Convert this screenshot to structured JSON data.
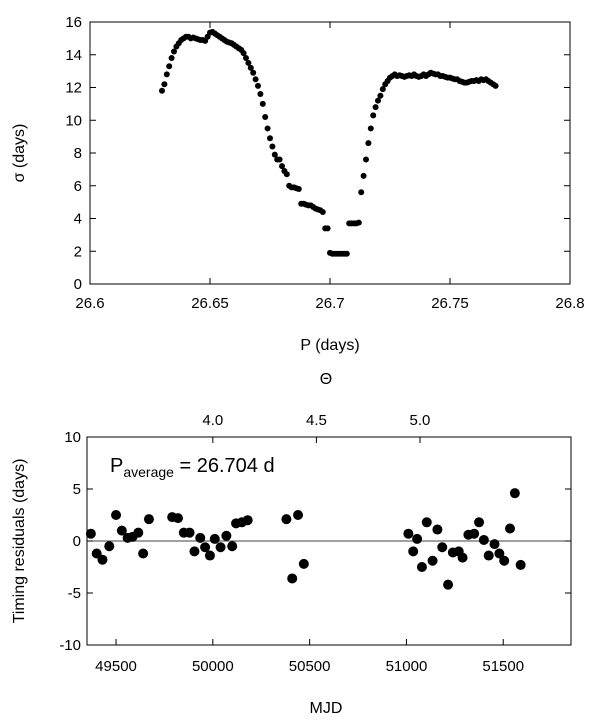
{
  "chart_data": [
    {
      "id": "top",
      "type": "scatter",
      "xlabel": "P (days)",
      "ylabel": "σ (days)",
      "xlim": [
        26.6,
        26.8
      ],
      "ylim": [
        0,
        16
      ],
      "xticks": [
        26.6,
        26.65,
        26.7,
        26.75,
        26.8
      ],
      "xtick_labels": [
        "26.6",
        "26.65",
        "26.7",
        "26.75",
        "26.8"
      ],
      "yticks": [
        0,
        2,
        4,
        6,
        8,
        10,
        12,
        14,
        16
      ],
      "ytick_labels": [
        "0",
        "2",
        "4",
        "6",
        "8",
        "10",
        "12",
        "14",
        "16"
      ],
      "points": [
        [
          26.63,
          11.8
        ],
        [
          26.631,
          12.2
        ],
        [
          26.632,
          12.8
        ],
        [
          26.633,
          13.3
        ],
        [
          26.634,
          13.8
        ],
        [
          26.635,
          14.2
        ],
        [
          26.636,
          14.5
        ],
        [
          26.637,
          14.7
        ],
        [
          26.638,
          14.9
        ],
        [
          26.639,
          15.0
        ],
        [
          26.64,
          15.1
        ],
        [
          26.641,
          15.1
        ],
        [
          26.642,
          15.0
        ],
        [
          26.643,
          15.05
        ],
        [
          26.644,
          15.0
        ],
        [
          26.645,
          14.95
        ],
        [
          26.646,
          14.9
        ],
        [
          26.647,
          14.9
        ],
        [
          26.648,
          14.85
        ],
        [
          26.649,
          15.1
        ],
        [
          26.65,
          15.35
        ],
        [
          26.651,
          15.4
        ],
        [
          26.652,
          15.3
        ],
        [
          26.653,
          15.2
        ],
        [
          26.654,
          15.1
        ],
        [
          26.655,
          15.0
        ],
        [
          26.656,
          14.9
        ],
        [
          26.657,
          14.8
        ],
        [
          26.658,
          14.75
        ],
        [
          26.659,
          14.7
        ],
        [
          26.66,
          14.6
        ],
        [
          26.661,
          14.5
        ],
        [
          26.662,
          14.4
        ],
        [
          26.663,
          14.3
        ],
        [
          26.664,
          14.1
        ],
        [
          26.665,
          13.8
        ],
        [
          26.666,
          13.5
        ],
        [
          26.667,
          13.2
        ],
        [
          26.668,
          12.9
        ],
        [
          26.669,
          12.5
        ],
        [
          26.67,
          12.1
        ],
        [
          26.671,
          11.6
        ],
        [
          26.672,
          11.0
        ],
        [
          26.673,
          10.2
        ],
        [
          26.674,
          9.5
        ],
        [
          26.675,
          8.9
        ],
        [
          26.676,
          8.4
        ],
        [
          26.677,
          7.9
        ],
        [
          26.678,
          7.6
        ],
        [
          26.679,
          7.6
        ],
        [
          26.68,
          7.2
        ],
        [
          26.681,
          6.9
        ],
        [
          26.682,
          6.7
        ],
        [
          26.683,
          6.0
        ],
        [
          26.684,
          5.9
        ],
        [
          26.685,
          5.9
        ],
        [
          26.686,
          5.85
        ],
        [
          26.687,
          5.8
        ],
        [
          26.688,
          4.9
        ],
        [
          26.689,
          4.9
        ],
        [
          26.69,
          4.85
        ],
        [
          26.691,
          4.8
        ],
        [
          26.692,
          4.8
        ],
        [
          26.693,
          4.7
        ],
        [
          26.694,
          4.6
        ],
        [
          26.695,
          4.55
        ],
        [
          26.696,
          4.5
        ],
        [
          26.697,
          4.4
        ],
        [
          26.698,
          3.4
        ],
        [
          26.699,
          3.4
        ],
        [
          26.7,
          1.9
        ],
        [
          26.701,
          1.85
        ],
        [
          26.702,
          1.85
        ],
        [
          26.703,
          1.85
        ],
        [
          26.704,
          1.85
        ],
        [
          26.705,
          1.85
        ],
        [
          26.706,
          1.85
        ],
        [
          26.707,
          1.85
        ],
        [
          26.708,
          3.7
        ],
        [
          26.709,
          3.7
        ],
        [
          26.71,
          3.7
        ],
        [
          26.711,
          3.7
        ],
        [
          26.712,
          3.75
        ],
        [
          26.713,
          5.6
        ],
        [
          26.714,
          6.6
        ],
        [
          26.715,
          7.6
        ],
        [
          26.716,
          8.6
        ],
        [
          26.717,
          9.5
        ],
        [
          26.718,
          10.3
        ],
        [
          26.719,
          10.8
        ],
        [
          26.72,
          11.2
        ],
        [
          26.721,
          11.5
        ],
        [
          26.722,
          11.9
        ],
        [
          26.723,
          12.2
        ],
        [
          26.724,
          12.4
        ],
        [
          26.725,
          12.6
        ],
        [
          26.726,
          12.7
        ],
        [
          26.727,
          12.8
        ],
        [
          26.728,
          12.7
        ],
        [
          26.729,
          12.75
        ],
        [
          26.73,
          12.7
        ],
        [
          26.731,
          12.65
        ],
        [
          26.732,
          12.7
        ],
        [
          26.733,
          12.75
        ],
        [
          26.734,
          12.7
        ],
        [
          26.735,
          12.8
        ],
        [
          26.736,
          12.7
        ],
        [
          26.737,
          12.65
        ],
        [
          26.738,
          12.7
        ],
        [
          26.739,
          12.8
        ],
        [
          26.74,
          12.7
        ],
        [
          26.741,
          12.8
        ],
        [
          26.742,
          12.9
        ],
        [
          26.743,
          12.85
        ],
        [
          26.744,
          12.8
        ],
        [
          26.745,
          12.8
        ],
        [
          26.746,
          12.7
        ],
        [
          26.747,
          12.7
        ],
        [
          26.748,
          12.65
        ],
        [
          26.749,
          12.6
        ],
        [
          26.75,
          12.6
        ],
        [
          26.751,
          12.55
        ],
        [
          26.752,
          12.5
        ],
        [
          26.753,
          12.5
        ],
        [
          26.754,
          12.4
        ],
        [
          26.755,
          12.35
        ],
        [
          26.756,
          12.3
        ],
        [
          26.757,
          12.3
        ],
        [
          26.758,
          12.35
        ],
        [
          26.759,
          12.4
        ],
        [
          26.76,
          12.4
        ],
        [
          26.761,
          12.45
        ],
        [
          26.762,
          12.4
        ],
        [
          26.763,
          12.5
        ],
        [
          26.764,
          12.45
        ],
        [
          26.765,
          12.5
        ],
        [
          26.766,
          12.4
        ],
        [
          26.767,
          12.3
        ],
        [
          26.768,
          12.2
        ],
        [
          26.769,
          12.1
        ]
      ]
    },
    {
      "id": "bottom",
      "type": "scatter",
      "annotation": {
        "base": "P",
        "sub": "average",
        "rest": " = 26.704 d"
      },
      "xlabel": "MJD",
      "ylabel": "Timing residuals (days)",
      "top_axis_label": "Θ",
      "xlim": [
        49350,
        51850
      ],
      "ylim": [
        -10,
        10
      ],
      "xticks": [
        49500,
        50000,
        50500,
        51000,
        51500
      ],
      "xtick_labels": [
        "49500",
        "50000",
        "50500",
        "51000",
        "51500"
      ],
      "yticks": [
        -10,
        -5,
        0,
        5,
        10
      ],
      "ytick_labels": [
        "-10",
        "-5",
        "0",
        "5",
        "10"
      ],
      "top_ticks": [
        4.0,
        4.5,
        5.0
      ],
      "top_tick_labels": [
        "4.0",
        "4.5",
        "5.0"
      ],
      "top_tick_mjd": [
        50000,
        50535,
        51070
      ],
      "points": [
        [
          49370,
          0.7
        ],
        [
          49400,
          -1.2
        ],
        [
          49430,
          -1.8
        ],
        [
          49465,
          -0.5
        ],
        [
          49500,
          2.5
        ],
        [
          49530,
          1.0
        ],
        [
          49560,
          0.3
        ],
        [
          49585,
          0.4
        ],
        [
          49615,
          0.8
        ],
        [
          49640,
          -1.2
        ],
        [
          49670,
          2.1
        ],
        [
          49790,
          2.3
        ],
        [
          49820,
          2.2
        ],
        [
          49850,
          0.8
        ],
        [
          49880,
          0.8
        ],
        [
          49905,
          -1.0
        ],
        [
          49935,
          0.3
        ],
        [
          49960,
          -0.6
        ],
        [
          49985,
          -1.4
        ],
        [
          50010,
          0.2
        ],
        [
          50040,
          -0.6
        ],
        [
          50070,
          0.5
        ],
        [
          50100,
          -0.5
        ],
        [
          50120,
          1.7
        ],
        [
          50150,
          1.8
        ],
        [
          50180,
          2.0
        ],
        [
          50380,
          2.1
        ],
        [
          50410,
          -3.6
        ],
        [
          50440,
          2.5
        ],
        [
          50470,
          -2.2
        ],
        [
          51010,
          0.7
        ],
        [
          51035,
          -1.0
        ],
        [
          51055,
          0.2
        ],
        [
          51080,
          -2.5
        ],
        [
          51105,
          1.8
        ],
        [
          51135,
          -1.9
        ],
        [
          51160,
          1.1
        ],
        [
          51185,
          -0.6
        ],
        [
          51215,
          -4.2
        ],
        [
          51240,
          -1.1
        ],
        [
          51270,
          -1.0
        ],
        [
          51290,
          -1.6
        ],
        [
          51320,
          0.6
        ],
        [
          51350,
          0.7
        ],
        [
          51375,
          1.8
        ],
        [
          51400,
          0.1
        ],
        [
          51425,
          -1.4
        ],
        [
          51455,
          -0.3
        ],
        [
          51480,
          -1.2
        ],
        [
          51505,
          -1.9
        ],
        [
          51535,
          1.2
        ],
        [
          51560,
          4.6
        ],
        [
          51590,
          -2.3
        ]
      ]
    }
  ]
}
